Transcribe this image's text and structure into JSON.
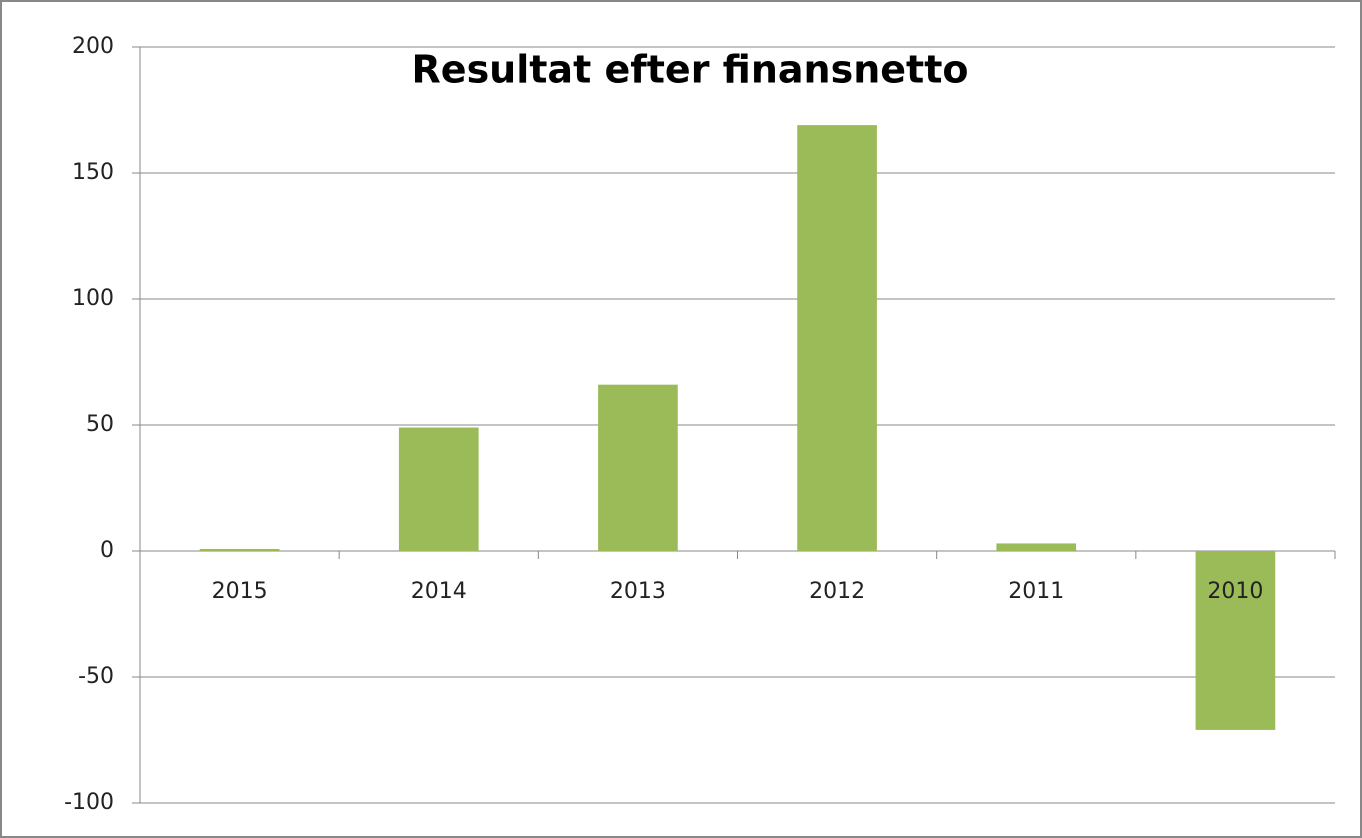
{
  "chart_data": {
    "type": "bar",
    "title": "Resultat efter finansnetto",
    "categories": [
      "2015",
      "2014",
      "2013",
      "2012",
      "2011",
      "2010"
    ],
    "values": [
      0.8,
      49,
      66,
      169,
      3,
      -71
    ],
    "color": "#9bbb59",
    "ylim": [
      -100,
      200
    ],
    "yticks": [
      -100,
      -50,
      0,
      50,
      100,
      150,
      200
    ],
    "grid": true
  }
}
